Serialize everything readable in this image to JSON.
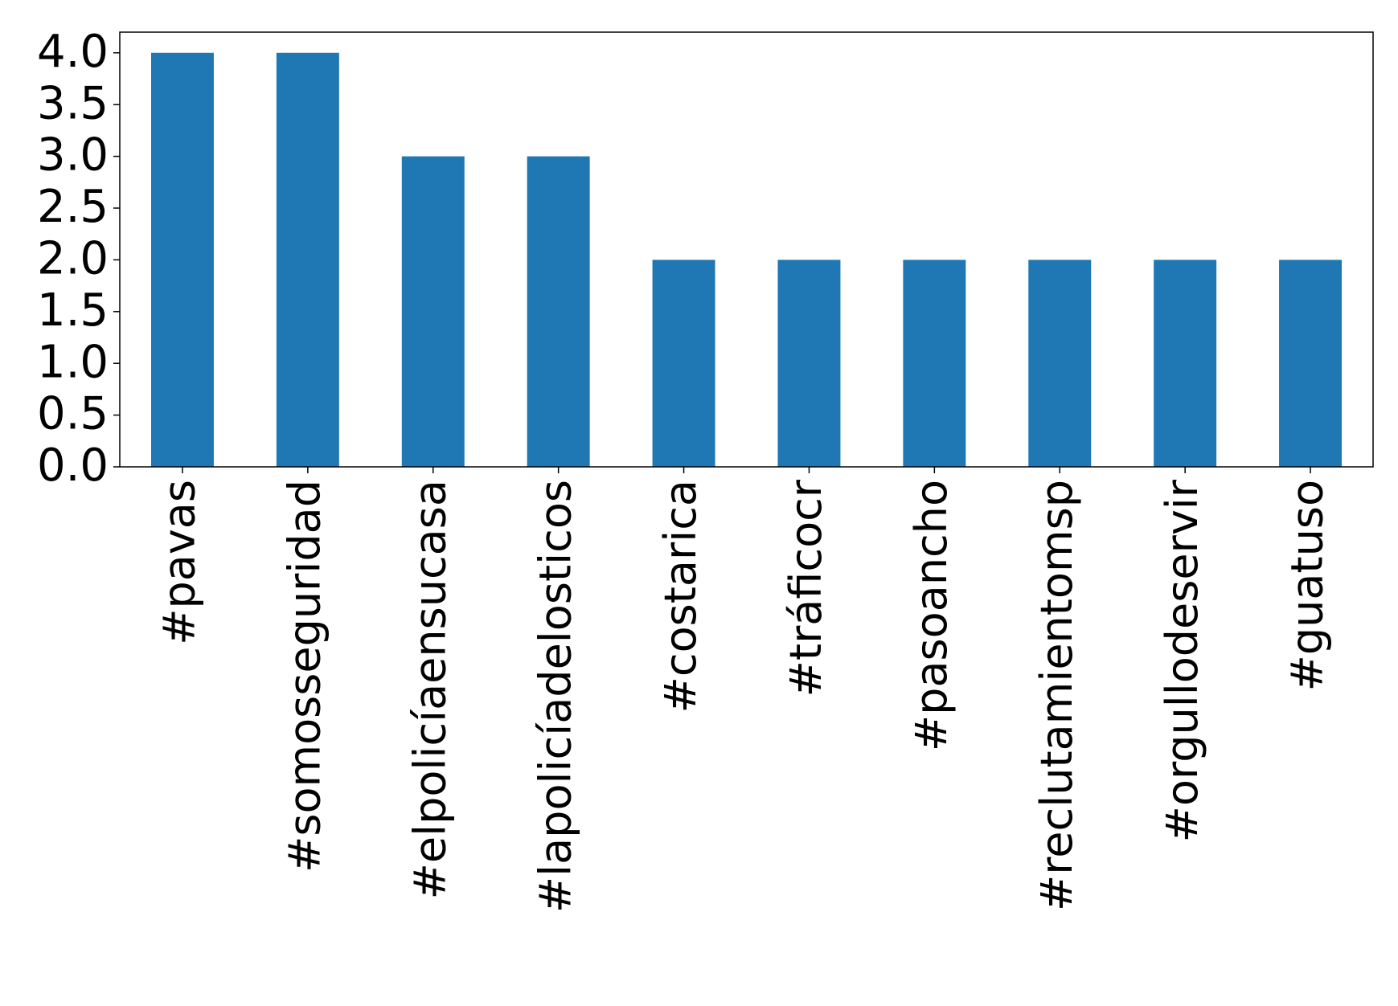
{
  "chart_data": {
    "type": "bar",
    "categories": [
      "#pavas",
      "#somosseguridad",
      "#elpolicíaensucasa",
      "#lapolicíadelosticos",
      "#costarica",
      "#tráficocr",
      "#pasoancho",
      "#reclutamientomsp",
      "#orgullodeservir",
      "#guatuso"
    ],
    "values": [
      4,
      4,
      3,
      3,
      2,
      2,
      2,
      2,
      2,
      2
    ],
    "color": "#1f77b4",
    "ylim": [
      0,
      4.2
    ],
    "yticks": [
      {
        "value": 0,
        "label": "0.0"
      },
      0.5,
      {
        "value": 1,
        "label": "1.0"
      },
      1.5,
      {
        "value": 2,
        "label": "2.0"
      },
      2.5,
      {
        "value": 3,
        "label": "3.0"
      },
      3.5,
      {
        "value": 4,
        "label": "4.0"
      }
    ],
    "grid": false
  }
}
